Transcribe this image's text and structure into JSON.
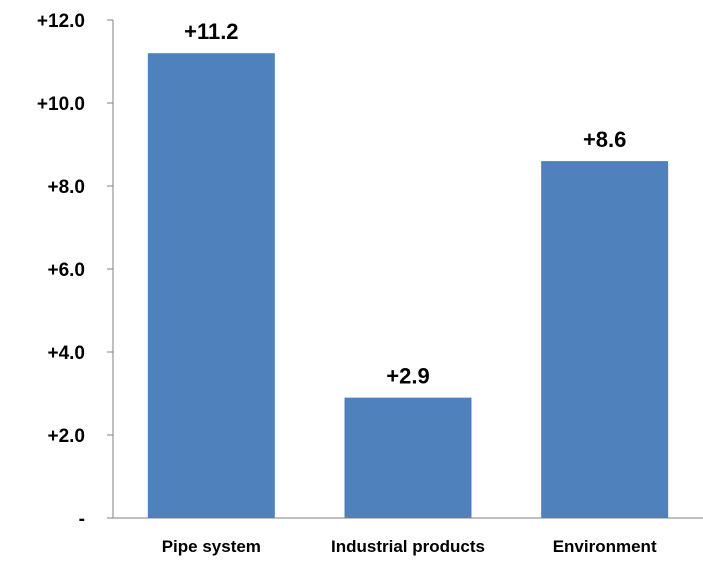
{
  "chart_data": {
    "type": "bar",
    "categories": [
      "Pipe system",
      "Industrial products",
      "Environment"
    ],
    "values": [
      11.2,
      2.9,
      8.6
    ],
    "data_labels": [
      "+11.2",
      "+2.9",
      "+8.6"
    ],
    "ylim": [
      0,
      12
    ],
    "yticks": [
      0,
      2,
      4,
      6,
      8,
      10,
      12
    ],
    "ytick_labels": [
      "-",
      "+2.0",
      "+4.0",
      "+6.0",
      "+8.0",
      "+10.0",
      "+12.0"
    ],
    "grid": false,
    "legend": "none",
    "title": "",
    "xlabel": "",
    "ylabel": "",
    "colors": {
      "bar": "#4F81BD",
      "axis": "#808080"
    }
  }
}
